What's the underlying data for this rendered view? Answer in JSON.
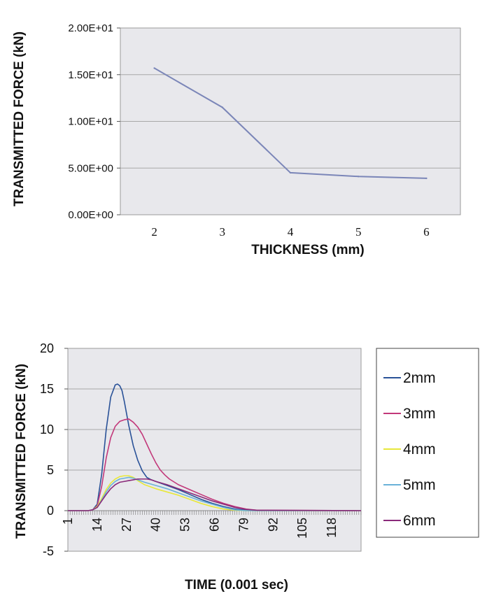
{
  "chart_data": [
    {
      "type": "line",
      "xlabel": "THICKNESS (mm)",
      "ylabel": "TRANSMITTED FORCE (kN)",
      "categories": [
        "2",
        "3",
        "4",
        "5",
        "6"
      ],
      "values": [
        15.7,
        11.5,
        4.5,
        4.1,
        3.9
      ],
      "yticks": [
        "0.00E+00",
        "5.00E+00",
        "1.00E+01",
        "1.50E+01",
        "2.00E+01"
      ],
      "ylim": [
        0,
        20
      ],
      "grid": true,
      "plot_bg": "#e8e8ec",
      "line_color": "#7b86b8"
    },
    {
      "type": "line",
      "xlabel": "TIME (0.001 sec)",
      "ylabel": "TRANSMITTED FORCE (kN)",
      "ylim": [
        -5,
        20
      ],
      "yticks": [
        "-5",
        "0",
        "5",
        "10",
        "15",
        "20"
      ],
      "xlim": [
        1,
        131
      ],
      "xticks": [
        "1",
        "14",
        "27",
        "40",
        "53",
        "66",
        "79",
        "92",
        "105",
        "118"
      ],
      "grid": true,
      "legend_position": "right",
      "plot_bg": "#e8e8ec",
      "series": [
        {
          "name": "2mm",
          "color": "#2a5298",
          "x": [
            1,
            10,
            12,
            14,
            16,
            18,
            20,
            22,
            23,
            24,
            25,
            26,
            27,
            28,
            30,
            32,
            34,
            36,
            38,
            40,
            45,
            50,
            55,
            60,
            65,
            70,
            75,
            80,
            85,
            131
          ],
          "y": [
            0,
            0,
            0.1,
            0.8,
            4.5,
            10,
            14,
            15.5,
            15.6,
            15.4,
            14.8,
            13.5,
            12,
            10.5,
            8,
            6.2,
            4.9,
            4.1,
            3.8,
            3.6,
            3.1,
            2.6,
            2.0,
            1.4,
            0.9,
            0.5,
            0.2,
            0.05,
            0,
            0
          ]
        },
        {
          "name": "3mm",
          "color": "#c2387a",
          "x": [
            1,
            10,
            12,
            14,
            16,
            18,
            20,
            22,
            24,
            26,
            28,
            30,
            32,
            34,
            36,
            38,
            40,
            42,
            44,
            46,
            50,
            55,
            60,
            65,
            70,
            75,
            80,
            85,
            131
          ],
          "y": [
            0,
            0,
            0.1,
            0.6,
            3,
            6.5,
            9,
            10.4,
            11,
            11.2,
            11.3,
            10.9,
            10.3,
            9.4,
            8.2,
            7.0,
            5.9,
            5.0,
            4.4,
            3.9,
            3.2,
            2.6,
            2.0,
            1.4,
            0.9,
            0.5,
            0.2,
            0.05,
            0
          ]
        },
        {
          "name": "4mm",
          "color": "#e8e83a",
          "x": [
            1,
            10,
            12,
            14,
            16,
            18,
            20,
            22,
            24,
            26,
            28,
            30,
            32,
            35,
            40,
            45,
            50,
            55,
            60,
            65,
            70,
            75,
            80,
            131
          ],
          "y": [
            0,
            0,
            0.1,
            0.5,
            1.5,
            2.6,
            3.4,
            3.9,
            4.2,
            4.3,
            4.3,
            4.1,
            3.7,
            3.2,
            2.7,
            2.3,
            1.9,
            1.4,
            0.9,
            0.5,
            0.2,
            0.05,
            0,
            0
          ]
        },
        {
          "name": "5mm",
          "color": "#6ab2d8",
          "x": [
            1,
            10,
            12,
            14,
            16,
            18,
            20,
            22,
            24,
            26,
            28,
            30,
            32,
            35,
            40,
            45,
            50,
            55,
            60,
            65,
            70,
            75,
            80,
            131
          ],
          "y": [
            0,
            0,
            0.1,
            0.4,
            1.3,
            2.3,
            3.1,
            3.6,
            3.9,
            4.0,
            4.1,
            4.0,
            3.8,
            3.5,
            3.1,
            2.7,
            2.2,
            1.7,
            1.2,
            0.8,
            0.4,
            0.1,
            0,
            0
          ]
        },
        {
          "name": "6mm",
          "color": "#8a2a7a",
          "x": [
            1,
            10,
            12,
            14,
            16,
            18,
            20,
            22,
            24,
            26,
            28,
            30,
            32,
            34,
            36,
            38,
            40,
            45,
            50,
            55,
            60,
            65,
            70,
            75,
            80,
            85,
            131
          ],
          "y": [
            0,
            0,
            0.1,
            0.4,
            1.2,
            2.0,
            2.7,
            3.2,
            3.5,
            3.6,
            3.7,
            3.8,
            3.9,
            3.9,
            3.9,
            3.8,
            3.6,
            3.2,
            2.7,
            2.2,
            1.7,
            1.2,
            0.8,
            0.4,
            0.15,
            0.05,
            0
          ]
        }
      ]
    }
  ]
}
